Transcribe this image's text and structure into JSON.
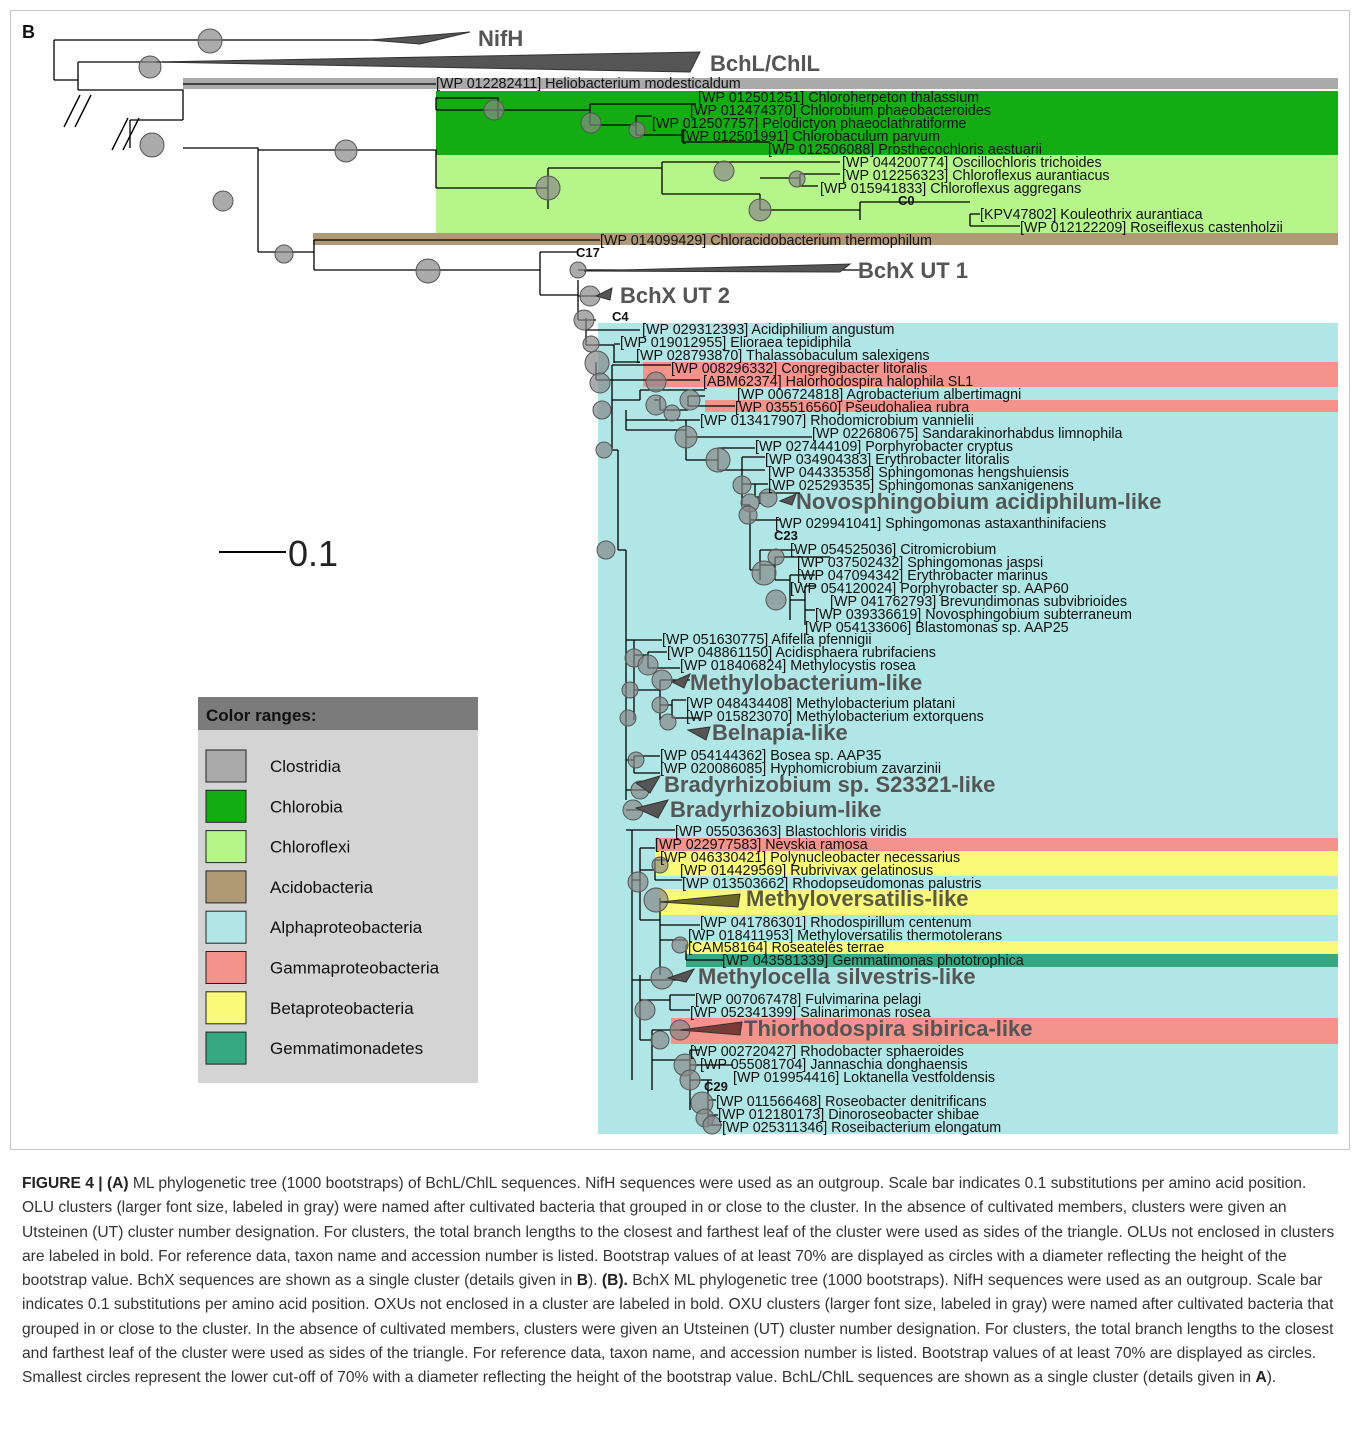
{
  "panel_label": "B",
  "scale_bar_label": "0.1",
  "legend": {
    "title": "Color ranges:",
    "items": [
      {
        "label": "Clostridia",
        "color": "#aaaaaa"
      },
      {
        "label": "Chlorobia",
        "color": "#13ad13"
      },
      {
        "label": "Chloroflexi",
        "color": "#b5f58a"
      },
      {
        "label": "Acidobacteria",
        "color": "#b09a76"
      },
      {
        "label": "Alphaproteobacteria",
        "color": "#b0e6e6"
      },
      {
        "label": "Gammaproteobacteria",
        "color": "#f4928c"
      },
      {
        "label": "Betaproteobacteria",
        "color": "#fafa7a"
      },
      {
        "label": "Gemmatimonadetes",
        "color": "#35a882"
      }
    ]
  },
  "clusters": {
    "nifh": "NifH",
    "bchl_chll": "BchL/ChlL",
    "bchx_ut1": "BchX UT 1",
    "bchx_ut2": "BchX UT 2",
    "novosphingobium": "Novosphingobium acidiphilum-like",
    "methylobacterium": "Methylobacterium-like",
    "belnapia": "Belnapia-like",
    "bradyrhizobium_s23321": "Bradyrhizobium sp. S23321-like",
    "bradyrhizobium": "Bradyrhizobium-like",
    "methyloversatilis": "Methyloversatilis-like",
    "methylocella": "Methylocella silvestris-like",
    "thiorhodospira": "Thiorhodospira sibirica-like"
  },
  "node_labels": {
    "c0": "C0",
    "c17": "C17",
    "c4": "C4",
    "c23": "C23",
    "c29": "C29"
  },
  "leaves": {
    "heliobacterium": "[WP 012282411] Heliobacterium modesticaldum",
    "chloroherpeton": "[WP 012501251] Chloroherpeton thalassium",
    "chlorobium": "[WP 012474370] Chlorobium phaeobacteroides",
    "pelodictyon": "[WP 012507757] Pelodictyon phaeoclathratiforme",
    "chlorobaculum": "[WP 012501991] Chlorobaculum parvum",
    "prosthecochloris": "[WP 012506088] Prosthecochloris aestuarii",
    "oscillochloris": "[WP 044200774] Oscillochloris trichoides",
    "chloroflexus_aur": "[WP 012256323] Chloroflexus aurantiacus",
    "chloroflexus_agg": "[WP 015941833] Chloroflexus aggregans",
    "kouleothrix": "[KPV47802] Kouleothrix aurantiaca",
    "roseiflexus": "[WP 012122209] Roseiflexus castenholzii",
    "chloracidobacterium": "[WP 014099429] Chloracidobacterium thermophilum",
    "acidiphilium": "[WP 029312393] Acidiphilium angustum",
    "elioraea": "[WP 019012955] Elioraea tepidiphila",
    "thalassobaculum": "[WP 028793870] Thalassobaculum salexigens",
    "congregibacter": "[WP 008296332] Congregibacter litoralis",
    "halorhodospira": "[ABM62374] Halorhodospira halophila SL1",
    "agrobacterium": "[WP 006724818] Agrobacterium albertimagni",
    "pseudohaliea": "[WP 035516560] Pseudohaliea rubra",
    "rhodomicrobium": "[WP 013417907] Rhodomicrobium vannielii",
    "sandarakinorhabdus": "[WP 022680675] Sandarakinorhabdus limnophila",
    "porphyrobacter_cryptus": "[WP 027444109] Porphyrobacter cryptus",
    "erythrobacter_litoralis": "[WP 034904383] Erythrobacter litoralis",
    "sphingomonas_heng": "[WP 044335358] Sphingomonas hengshuiensis",
    "sphingomonas_sanx": "[WP 025293535] Sphingomonas sanxanigenens",
    "sphingomonas_astax": "[WP 029941041] Sphingomonas astaxanthinifaciens",
    "citromicrobium": "[WP 054525036] Citromicrobium",
    "sphingomonas_jaspsi": "[WP 037502432] Sphingomonas jaspsi",
    "erythrobacter_marinus": "[WP 047094342] Erythrobacter marinus",
    "porphyrobacter_aap60": "[WP 054120024] Porphyrobacter sp. AAP60",
    "brevundimonas": "[WP 041762793] Brevundimonas subvibrioides",
    "novosphingobium_subt": "[WP 039336619] Novosphingobium subterraneum",
    "blastomonas": "[WP 054133606] Blastomonas sp. AAP25",
    "afifella": "[WP 051630775] Afifella pfennigii",
    "acidisphaera": "[WP 048861150] Acidisphaera rubrifaciens",
    "methylocystis": "[WP 018406824] Methylocystis rosea",
    "methylobacterium_platani": "[WP 048434408] Methylobacterium platani",
    "methylobacterium_ext": "[WP 015823070] Methylobacterium extorquens",
    "bosea": "[WP 054144362] Bosea sp. AAP35",
    "hyphomicrobium": "[WP 020086085] Hyphomicrobium zavarzinii",
    "blastochloris": "[WP 055036363] Blastochloris viridis",
    "nevskia": "[WP 022977583] Nevskia ramosa",
    "polynucleobacter": "[WP 046330421] Polynucleobacter necessarius",
    "rubrivivax": "[WP 014429569] Rubrivivax gelatinosus",
    "rhodopseudomonas": "[WP 013503662] Rhodopseudomonas palustris",
    "rhodospirillum": "[WP 041786301] Rhodospirillum centenum",
    "methyloversatilis_th": "[WP 018411953] Methyloversatilis thermotolerans",
    "roseateles": "[CAM58164] Roseateles terrae",
    "gemmatimonas": "[WP 043581339] Gemmatimonas phototrophica",
    "fulvimarina": "[WP 007067478] Fulvimarina pelagi",
    "salinarimonas": "[WP 052341399] Salinarimonas rosea",
    "rhodobacter": "[WP 002720427] Rhodobacter sphaeroides",
    "jannaschia": "[WP 055081704] Jannaschia donghaensis",
    "loktanella": "[WP 019954416] Loktanella vestfoldensis",
    "roseobacter": "[WP 011566468] Roseobacter denitrificans",
    "dinoroseobacter": "[WP 012180173] Dinoroseobacter shibae",
    "roseibacterium": "[WP 025311346] Roseibacterium elongatum"
  },
  "caption": {
    "figure_label": "FIGURE 4 | (A)",
    "part1": " ML phylogenetic tree (1000 bootstraps) of BchL/ChlL sequences. NifH sequences were used as an outgroup. Scale bar indicates 0.1 substitutions per amino acid position. OLU clusters (larger font size, labeled in gray) were named after cultivated bacteria that grouped in or close to the cluster. In the absence of cultivated members, clusters were given an Utsteinen (UT) cluster number designation. For clusters, the total branch lengths to the closest and farthest leaf of the cluster were used as sides of the triangle. OLUs not enclosed in clusters are labeled in bold. For reference data, taxon name and accession number is listed. Bootstrap values of at least 70% are displayed as circles with a diameter reflecting the height of the bootstrap value. BchX sequences are shown as a single cluster (details given in ",
    "ref_b": "B",
    "part2": "). ",
    "label_b": "(B).",
    "part3": " BchX ML phylogenetic tree (1000 bootstraps). NifH sequences were used as an outgroup. Scale bar indicates 0.1 substitutions per amino acid position. OXUs not enclosed in a cluster are labeled in bold. OXU clusters (larger font size, labeled in gray) were named after cultivated bacteria that grouped in or close to the cluster. In the absence of cultivated members, clusters were given an Utsteinen (UT) cluster number designation. For clusters, the total branch lengths to the closest and farthest leaf of the cluster were used as sides of the triangle. For reference data, taxon name, and accession number is listed. Bootstrap values of at least 70% are displayed as circles. Smallest circles represent the lower cut-off of 70% with a diameter reflecting the height of the bootstrap value. BchL/ChlL sequences are shown as a single cluster (details given in ",
    "ref_a": "A",
    "part4": ")."
  }
}
